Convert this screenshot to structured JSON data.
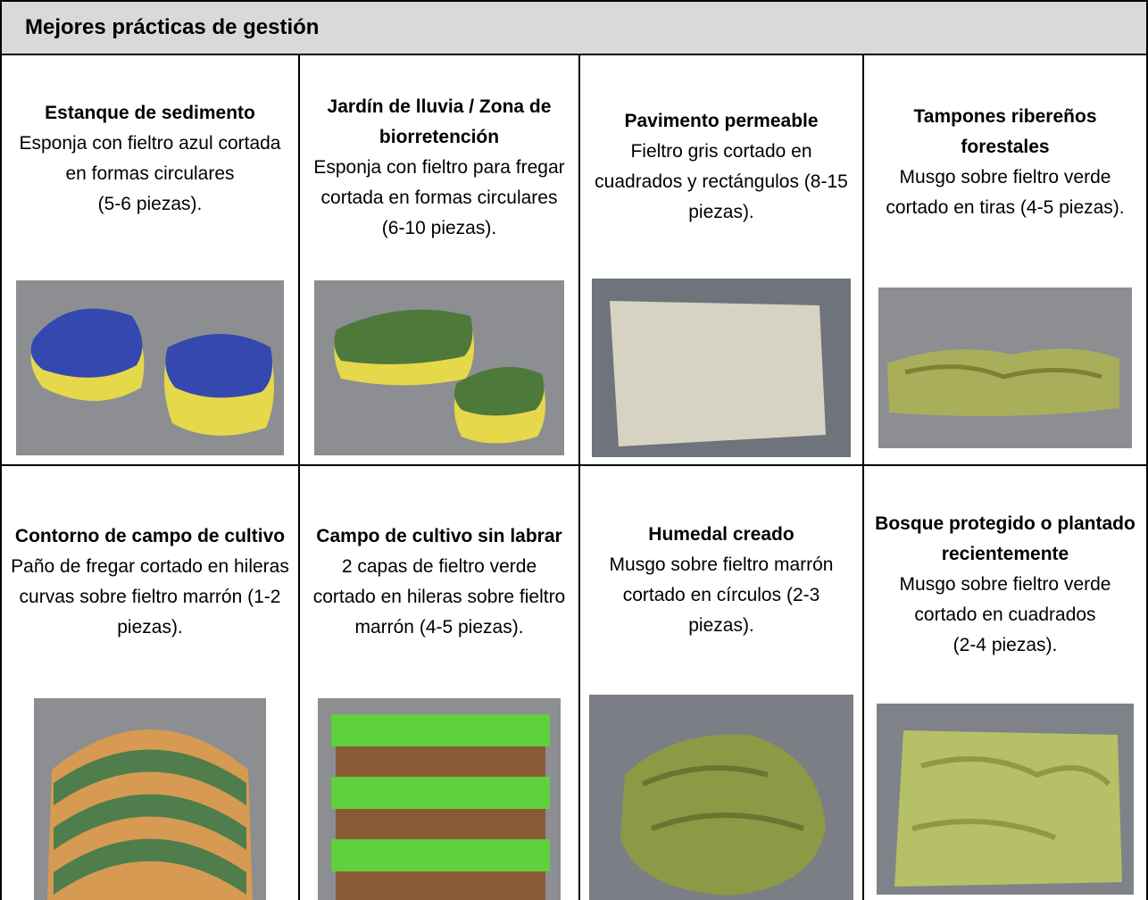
{
  "header": {
    "title": "Mejores prácticas de gestión"
  },
  "table": {
    "rows": [
      [
        {
          "title": "Estanque de sedimento",
          "description": "Esponja con fieltro azul cortada en formas circulares",
          "pieces": "(5-6 piezas)."
        },
        {
          "title": "Jardín de lluvia / Zona de biorretención",
          "description": "Esponja con fieltro para fregar cortada en formas circulares (6-10 piezas)."
        },
        {
          "title": "Pavimento permeable",
          "description": "Fieltro gris cortado en cuadrados y rectángulos (8-15 piezas)."
        },
        {
          "title": "Tampones ribereños forestales",
          "description": "Musgo sobre fieltro verde cortado en tiras (4-5 piezas)."
        }
      ],
      [
        {
          "title": "Contorno de campo de cultivo",
          "description": "Paño de fregar cortado en hileras curvas sobre fieltro marrón (1-2 piezas)."
        },
        {
          "title": "Campo de cultivo sin labrar",
          "description": "2 capas de fieltro verde cortado en hileras sobre fieltro marrón (4-5 piezas)."
        },
        {
          "title": "Humedal creado",
          "description": "Musgo sobre fieltro marrón cortado en círculos (2-3 piezas)."
        },
        {
          "title": "Bosque protegido o plantado recientemente",
          "description": "Musgo sobre fieltro verde cortado en cuadrados",
          "pieces": "(2-4 piezas)."
        }
      ]
    ]
  }
}
